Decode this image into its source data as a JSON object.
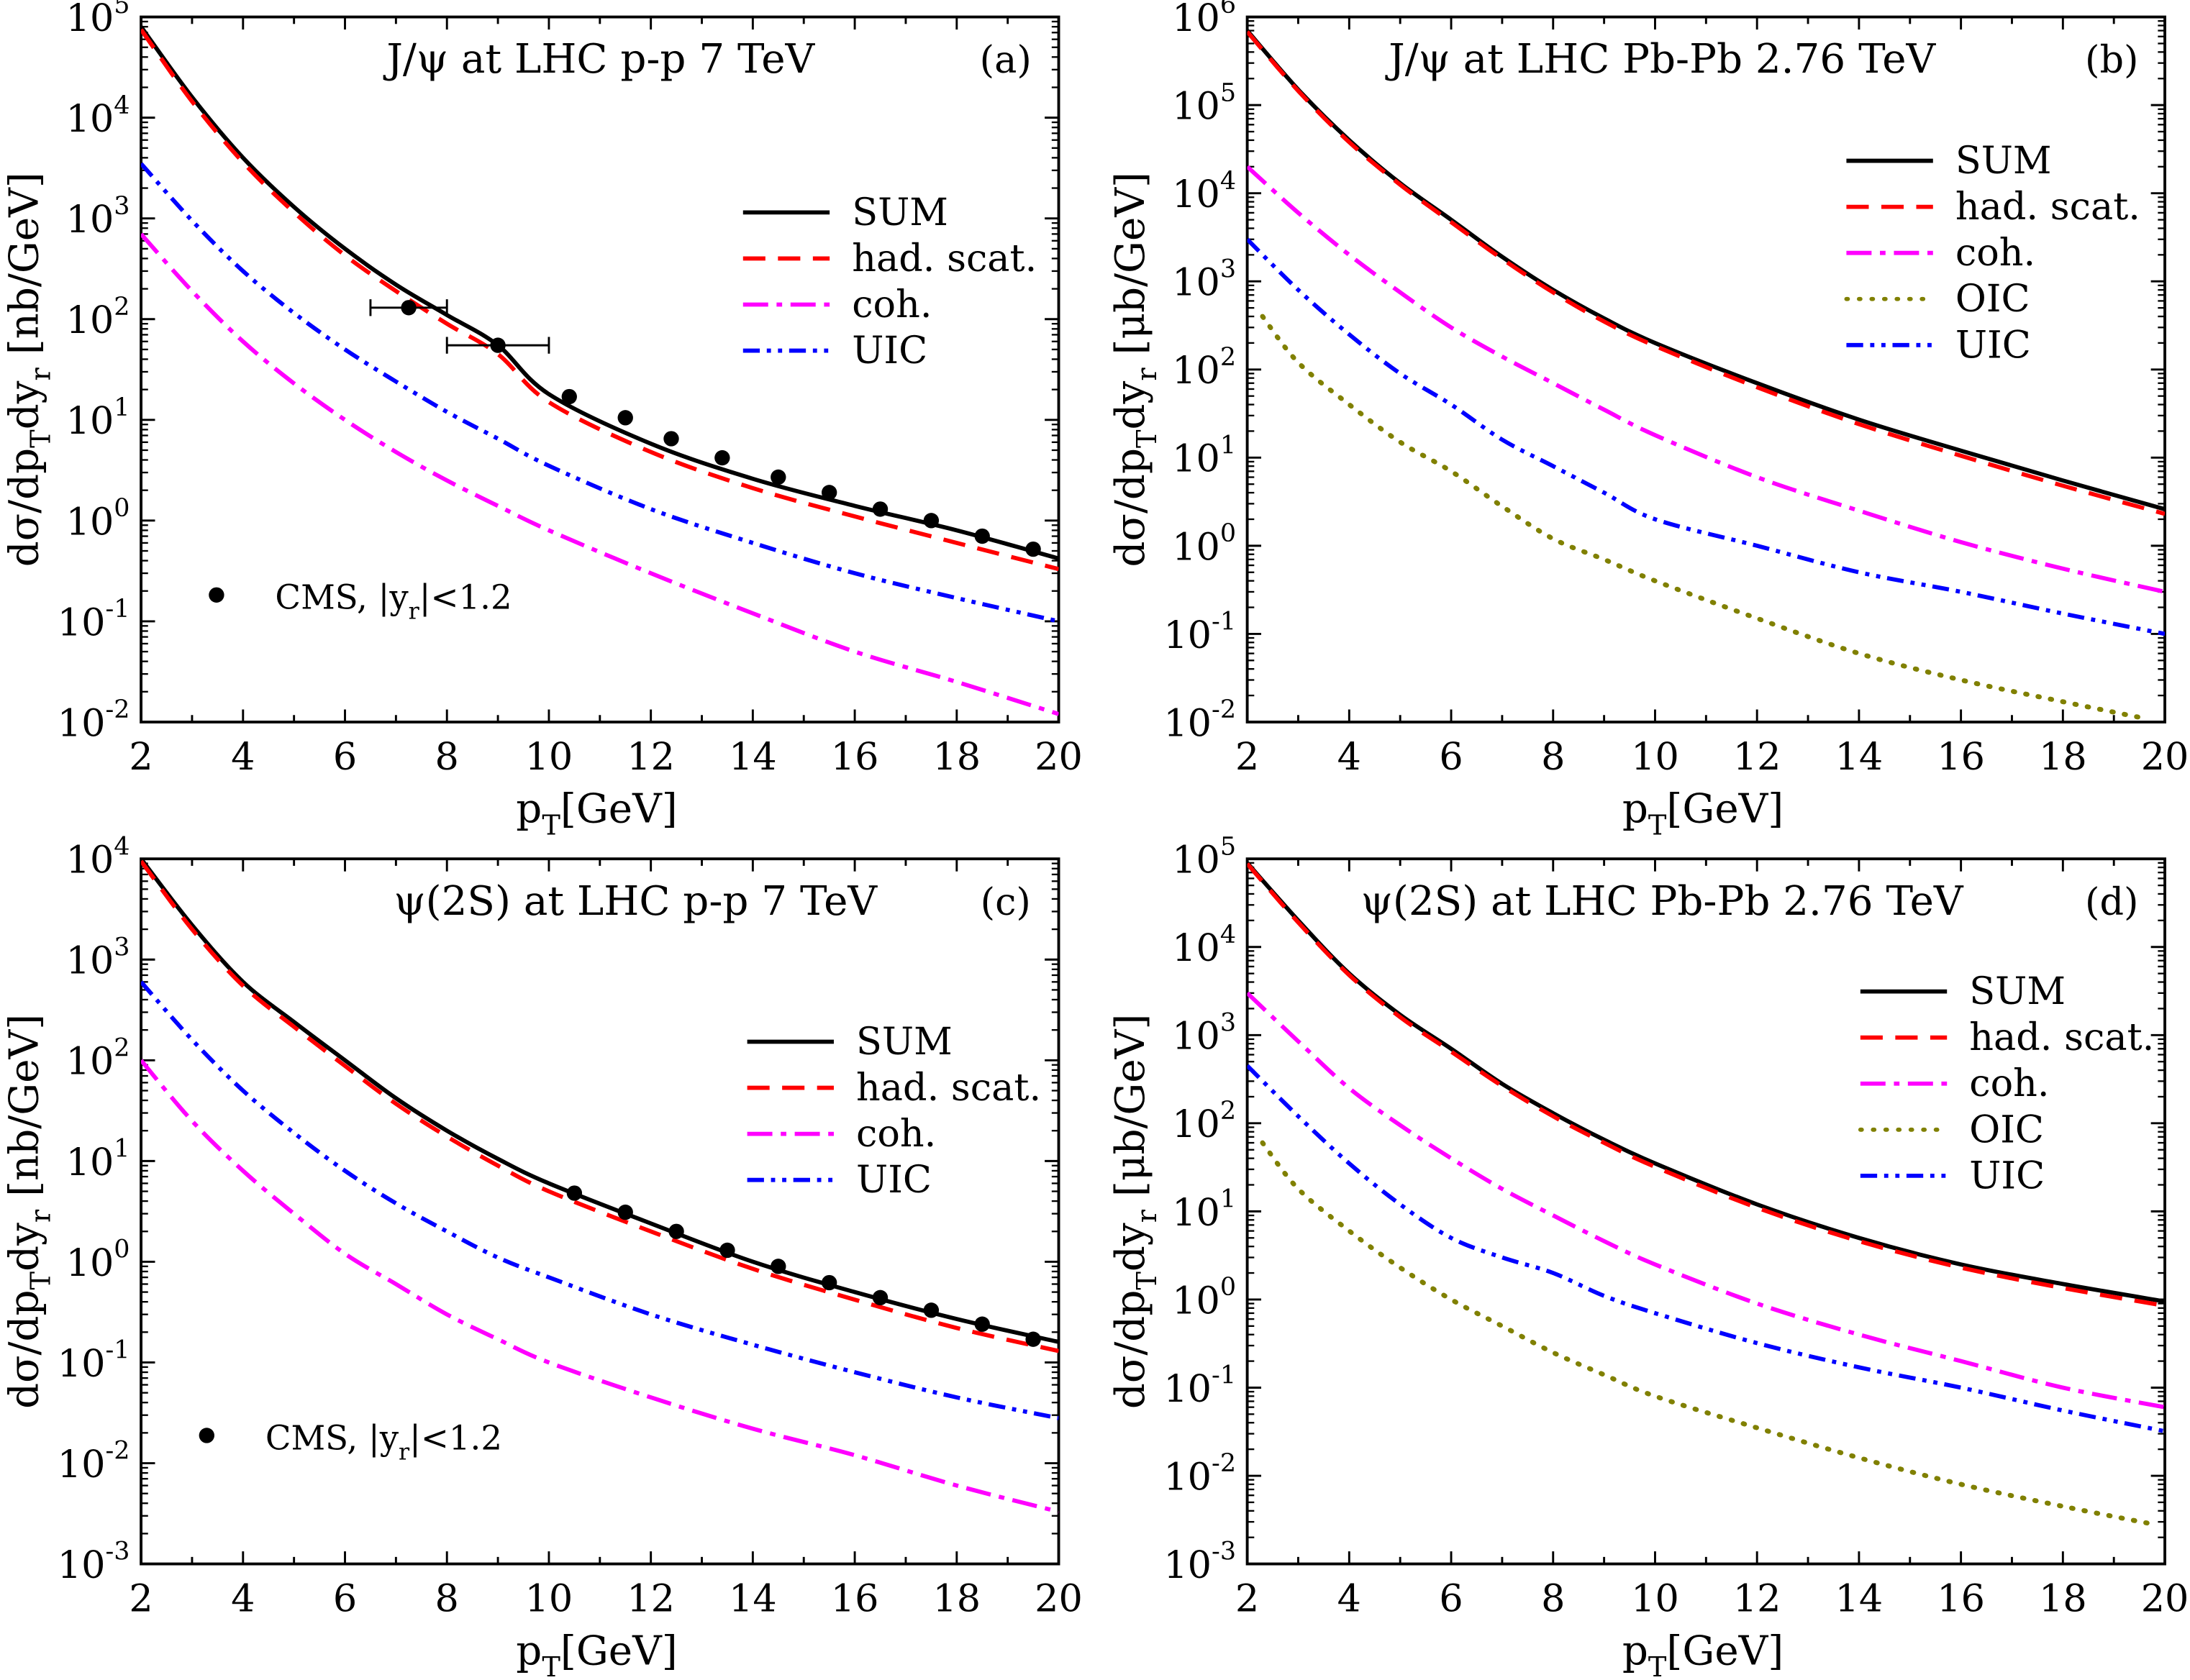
{
  "chart_data": [
    {
      "type": "line",
      "panel_tag": "(a)",
      "title": "J/ψ at LHC p-p 7 TeV",
      "xlabel": [
        {
          "t": "p"
        },
        {
          "t": "T",
          "sub": true
        },
        {
          "t": "[GeV]"
        }
      ],
      "ylabel": [
        {
          "t": "dσ/dp"
        },
        {
          "t": "T",
          "sub": true
        },
        {
          "t": "dy"
        },
        {
          "t": "r",
          "sub": true
        },
        {
          "t": "  [nb/GeV]"
        }
      ],
      "xlim": [
        2,
        20
      ],
      "xticks": [
        2,
        4,
        6,
        8,
        10,
        12,
        14,
        16,
        18,
        20
      ],
      "ylim_exp": [
        -2,
        5
      ],
      "legend_placement": "center-right",
      "series": [
        {
          "name": "SUM",
          "style": "solid",
          "color": "#000000",
          "x": [
            2,
            3,
            4,
            5,
            6,
            7,
            8,
            9,
            10,
            12,
            14,
            16,
            18,
            20
          ],
          "y": [
            80000,
            16000,
            4000,
            1300,
            500,
            220,
            110,
            55,
            18,
            5.8,
            2.6,
            1.4,
            0.8,
            0.42
          ]
        },
        {
          "name": "had. scat.",
          "style": "dashed",
          "color": "#ff0000",
          "x": [
            2,
            3,
            4,
            5,
            6,
            7,
            8,
            9,
            10,
            12,
            14,
            16,
            18,
            20
          ],
          "y": [
            75000,
            14500,
            3600,
            1150,
            430,
            190,
            90,
            45,
            15,
            4.8,
            2.1,
            1.1,
            0.6,
            0.33
          ]
        },
        {
          "name": "coh.",
          "style": "dashdot",
          "color": "#ff00ff",
          "x": [
            2,
            3,
            4,
            5,
            6,
            7,
            8,
            9,
            10,
            12,
            14,
            16,
            18,
            20
          ],
          "y": [
            700,
            190,
            60,
            23,
            10,
            4.8,
            2.5,
            1.4,
            0.8,
            0.3,
            0.12,
            0.05,
            0.025,
            0.012
          ]
        },
        {
          "name": "UIC",
          "style": "dashdotdot",
          "color": "#0000ff",
          "x": [
            2,
            3,
            4,
            5,
            6,
            7,
            8,
            9,
            10,
            12,
            14,
            16,
            18,
            20
          ],
          "y": [
            3500,
            950,
            300,
            115,
            50,
            24,
            12,
            6.5,
            3.5,
            1.3,
            0.6,
            0.3,
            0.17,
            0.1
          ]
        }
      ],
      "data_points": {
        "label": [
          {
            "t": "CMS,  |y"
          },
          {
            "t": "r",
            "sub": true
          },
          {
            "t": "|<1.2"
          }
        ],
        "x": [
          7.25,
          9,
          10.4,
          11.5,
          12.4,
          13.4,
          14.5,
          15.5,
          16.5,
          17.5,
          18.5,
          19.5
        ],
        "y": [
          130,
          55,
          17,
          10.5,
          6.5,
          4.2,
          2.7,
          1.9,
          1.3,
          1.0,
          0.7,
          0.52
        ],
        "xerr": [
          [
            6.5,
            8
          ],
          [
            8,
            10
          ],
          null,
          null,
          null,
          null,
          null,
          null,
          null,
          null,
          null,
          null
        ]
      }
    },
    {
      "type": "line",
      "panel_tag": "(b)",
      "title": "J/ψ at LHC Pb-Pb 2.76 TeV",
      "xlabel": [
        {
          "t": "p"
        },
        {
          "t": "T",
          "sub": true
        },
        {
          "t": "[GeV]"
        }
      ],
      "ylabel": [
        {
          "t": "dσ/dp"
        },
        {
          "t": "T",
          "sub": true
        },
        {
          "t": "dy"
        },
        {
          "t": "r",
          "sub": true
        },
        {
          "t": "  [μb/GeV]"
        }
      ],
      "xlim": [
        2,
        20
      ],
      "xticks": [
        2,
        4,
        6,
        8,
        10,
        12,
        14,
        16,
        18,
        20
      ],
      "ylim_exp": [
        -2,
        6
      ],
      "legend_placement": "top-right",
      "series": [
        {
          "name": "SUM",
          "style": "solid",
          "color": "#000000",
          "x": [
            2,
            3,
            4,
            5,
            6,
            7,
            8,
            9,
            10,
            12,
            14,
            16,
            18,
            20
          ],
          "y": [
            700000,
            150000,
            40000,
            13000,
            5000,
            1900,
            800,
            380,
            200,
            70,
            27,
            12,
            5.5,
            2.6
          ]
        },
        {
          "name": "had. scat.",
          "style": "dashed",
          "color": "#ff0000",
          "x": [
            2,
            3,
            4,
            5,
            6,
            7,
            8,
            9,
            10,
            12,
            14,
            16,
            18,
            20
          ],
          "y": [
            680000,
            145000,
            38000,
            12500,
            4700,
            1800,
            750,
            350,
            185,
            63,
            24,
            10.5,
            4.8,
            2.3
          ]
        },
        {
          "name": "coh.",
          "style": "dashdot",
          "color": "#ff00ff",
          "x": [
            2,
            3,
            4,
            5,
            6,
            7,
            8,
            9,
            10,
            12,
            14,
            16,
            18,
            20
          ],
          "y": [
            20000,
            6000,
            2000,
            750,
            300,
            140,
            70,
            35,
            18,
            6,
            2.5,
            1.1,
            0.55,
            0.3
          ]
        },
        {
          "name": "OIC",
          "style": "dotted",
          "color": "#808000",
          "x": [
            2.3,
            3,
            4,
            5,
            6,
            7,
            8,
            9,
            10,
            12,
            14,
            16,
            18,
            19.6
          ],
          "y": [
            400,
            120,
            40,
            15,
            7,
            2.8,
            1.2,
            0.7,
            0.4,
            0.15,
            0.06,
            0.03,
            0.017,
            0.011
          ]
        },
        {
          "name": "UIC",
          "style": "dashdotdot",
          "color": "#0000ff",
          "x": [
            2,
            3,
            4,
            5,
            6,
            7,
            8,
            9,
            10,
            12,
            14,
            16,
            18,
            20
          ],
          "y": [
            3000,
            800,
            250,
            90,
            40,
            16,
            8,
            4,
            2,
            1,
            0.5,
            0.3,
            0.17,
            0.1
          ]
        }
      ]
    },
    {
      "type": "line",
      "panel_tag": "(c)",
      "title": "ψ(2S) at LHC p-p 7 TeV",
      "xlabel": [
        {
          "t": "p"
        },
        {
          "t": "T",
          "sub": true
        },
        {
          "t": "[GeV]"
        }
      ],
      "ylabel": [
        {
          "t": "dσ/dp"
        },
        {
          "t": "T",
          "sub": true
        },
        {
          "t": "dy"
        },
        {
          "t": "r",
          "sub": true
        },
        {
          "t": "  [nb/GeV]"
        }
      ],
      "xlim": [
        2,
        20
      ],
      "xticks": [
        2,
        4,
        6,
        8,
        10,
        12,
        14,
        16,
        18,
        20
      ],
      "ylim_exp": [
        -3,
        4
      ],
      "legend_placement": "center-right",
      "series": [
        {
          "name": "SUM",
          "style": "solid",
          "color": "#000000",
          "x": [
            2,
            3,
            4,
            5,
            6,
            7,
            8,
            9,
            10,
            12,
            14,
            16,
            18,
            20
          ],
          "y": [
            10000,
            2200,
            600,
            240,
            100,
            42,
            20,
            10.5,
            6,
            2.4,
            1.0,
            0.5,
            0.27,
            0.16
          ]
        },
        {
          "name": "had. scat.",
          "style": "dashed",
          "color": "#ff0000",
          "x": [
            2,
            3,
            4,
            5,
            6,
            7,
            8,
            9,
            10,
            12,
            14,
            16,
            18,
            20
          ],
          "y": [
            9500,
            2000,
            550,
            215,
            88,
            37,
            17.5,
            9,
            5,
            2.0,
            0.85,
            0.42,
            0.22,
            0.13
          ]
        },
        {
          "name": "coh.",
          "style": "dashdot",
          "color": "#ff00ff",
          "x": [
            2,
            3,
            4,
            5,
            6,
            7,
            8,
            9,
            10,
            12,
            14,
            16,
            18,
            20
          ],
          "y": [
            100,
            25,
            8,
            3,
            1.2,
            0.6,
            0.3,
            0.17,
            0.1,
            0.045,
            0.022,
            0.012,
            0.006,
            0.0033
          ]
        },
        {
          "name": "UIC",
          "style": "dashdotdot",
          "color": "#0000ff",
          "x": [
            2,
            3,
            4,
            5,
            6,
            7,
            8,
            9,
            10,
            12,
            14,
            16,
            18,
            20
          ],
          "y": [
            600,
            160,
            50,
            19,
            8,
            3.8,
            2,
            1.1,
            0.7,
            0.3,
            0.15,
            0.08,
            0.045,
            0.028
          ]
        }
      ],
      "data_points": {
        "label": [
          {
            "t": "CMS,  |y"
          },
          {
            "t": "r",
            "sub": true
          },
          {
            "t": "|<1.2"
          }
        ],
        "x": [
          10.5,
          11.5,
          12.5,
          13.5,
          14.5,
          15.5,
          16.5,
          17.5,
          18.5,
          19.5
        ],
        "y": [
          4.8,
          3.1,
          2.0,
          1.3,
          0.9,
          0.62,
          0.44,
          0.33,
          0.24,
          0.17
        ],
        "xerr": [
          null,
          null,
          null,
          null,
          null,
          null,
          null,
          null,
          null,
          null
        ]
      }
    },
    {
      "type": "line",
      "panel_tag": "(d)",
      "title": "ψ(2S) at LHC Pb-Pb 2.76 TeV",
      "xlabel": [
        {
          "t": "p"
        },
        {
          "t": "T",
          "sub": true
        },
        {
          "t": "[GeV]"
        }
      ],
      "ylabel": [
        {
          "t": "dσ/dp"
        },
        {
          "t": "T",
          "sub": true
        },
        {
          "t": "dy"
        },
        {
          "t": "r",
          "sub": true
        },
        {
          "t": "  [μb/GeV]"
        }
      ],
      "xlim": [
        2,
        20
      ],
      "xticks": [
        2,
        4,
        6,
        8,
        10,
        12,
        14,
        16,
        18,
        20
      ],
      "ylim_exp": [
        -3,
        5
      ],
      "legend_placement": "top-right",
      "series": [
        {
          "name": "SUM",
          "style": "solid",
          "color": "#000000",
          "x": [
            2,
            3,
            4,
            5,
            6,
            7,
            8,
            9,
            10,
            12,
            14,
            16,
            18,
            20
          ],
          "y": [
            90000,
            20000,
            5000,
            1700,
            700,
            280,
            130,
            65,
            35,
            12,
            5,
            2.5,
            1.5,
            0.95
          ]
        },
        {
          "name": "had. scat.",
          "style": "dashed",
          "color": "#ff0000",
          "x": [
            2,
            3,
            4,
            5,
            6,
            7,
            8,
            9,
            10,
            12,
            14,
            16,
            18,
            20
          ],
          "y": [
            88000,
            19000,
            4800,
            1600,
            650,
            265,
            120,
            60,
            32,
            11,
            4.6,
            2.3,
            1.35,
            0.85
          ]
        },
        {
          "name": "coh.",
          "style": "dashdot",
          "color": "#ff00ff",
          "x": [
            2,
            3,
            4,
            5,
            6,
            7,
            8,
            9,
            10,
            12,
            14,
            16,
            18,
            20
          ],
          "y": [
            3000,
            850,
            250,
            95,
            40,
            18,
            9,
            4.6,
            2.5,
            0.9,
            0.4,
            0.2,
            0.1,
            0.06
          ]
        },
        {
          "name": "OIC",
          "style": "dotted",
          "color": "#808000",
          "x": [
            2.3,
            3,
            4,
            5,
            6,
            7,
            8,
            9,
            10,
            12,
            14,
            16,
            18,
            19.8
          ],
          "y": [
            60,
            18,
            6,
            2.3,
            1,
            0.5,
            0.25,
            0.14,
            0.08,
            0.035,
            0.016,
            0.008,
            0.0045,
            0.0028
          ]
        },
        {
          "name": "UIC",
          "style": "dashdotdot",
          "color": "#0000ff",
          "x": [
            2,
            3,
            4,
            5,
            6,
            7,
            8,
            9,
            10,
            12,
            14,
            16,
            18,
            20
          ],
          "y": [
            450,
            120,
            35,
            12,
            5,
            3,
            2,
            1.1,
            0.7,
            0.32,
            0.17,
            0.1,
            0.055,
            0.032
          ]
        }
      ]
    }
  ]
}
